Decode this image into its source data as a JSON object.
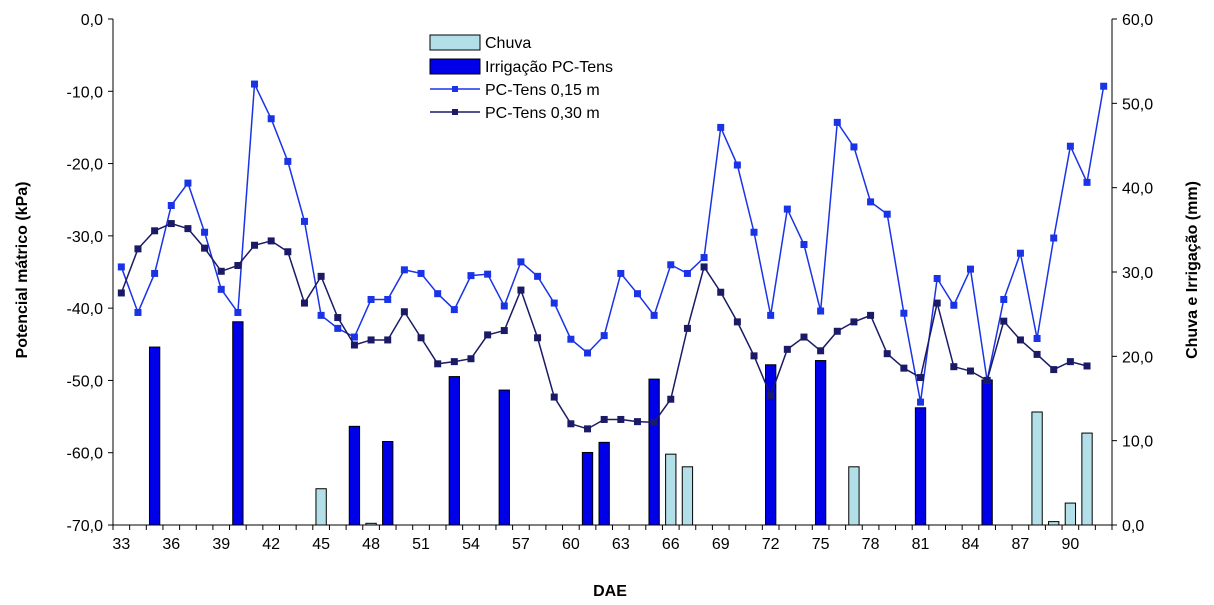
{
  "chart_data": {
    "type": "bar+line",
    "xlabel": "DAE",
    "ylabel_left": "Potencial mátrico (kPa)",
    "ylabel_right": "Chuva e Irrigação (mm)",
    "ylim_left": [
      -70,
      0
    ],
    "ylim_right": [
      0,
      60
    ],
    "xlim": [
      33,
      92
    ],
    "x_ticks": [
      "33",
      "36",
      "39",
      "42",
      "45",
      "48",
      "51",
      "54",
      "57",
      "60",
      "63",
      "66",
      "69",
      "72",
      "75",
      "78",
      "81",
      "84",
      "87",
      "90"
    ],
    "y_ticks_left": [
      "0,0",
      "-10,0",
      "-20,0",
      "-30,0",
      "-40,0",
      "-50,0",
      "-60,0",
      "-70,0"
    ],
    "y_ticks_right": [
      "0,0",
      "10,0",
      "20,0",
      "30,0",
      "40,0",
      "50,0",
      "60,0"
    ],
    "legend": {
      "placement": "top-center",
      "entries": [
        "Chuva",
        "Irrigação PC-Tens",
        "PC-Tens 0,15 m",
        "PC-Tens 0,30 m"
      ]
    },
    "bar_series": [
      {
        "name": "Chuva",
        "color": "#b3e0e8",
        "axis": "right",
        "points": [
          [
            45,
            4.3
          ],
          [
            48,
            0.2
          ],
          [
            66,
            8.4
          ],
          [
            67,
            6.9
          ],
          [
            77,
            6.9
          ],
          [
            88,
            13.4
          ],
          [
            89,
            0.4
          ],
          [
            90,
            2.6
          ],
          [
            91,
            10.9
          ]
        ]
      },
      {
        "name": "Irrigação PC-Tens",
        "color": "#0000e8",
        "axis": "right",
        "points": [
          [
            35,
            21.1
          ],
          [
            40,
            24.1
          ],
          [
            47,
            11.7
          ],
          [
            49,
            9.9
          ],
          [
            53,
            17.6
          ],
          [
            56,
            16.0
          ],
          [
            61,
            8.6
          ],
          [
            62,
            9.8
          ],
          [
            65,
            17.3
          ],
          [
            72,
            19.0
          ],
          [
            75,
            19.5
          ],
          [
            81,
            13.9
          ],
          [
            85,
            17.2
          ]
        ]
      }
    ],
    "line_series": [
      {
        "name": "PC-Tens 0,15 m",
        "color": "#1a33e6",
        "axis": "left",
        "points": [
          [
            33,
            -34.3
          ],
          [
            34,
            -40.6
          ],
          [
            35,
            -35.2
          ],
          [
            36,
            -25.8
          ],
          [
            37,
            -22.7
          ],
          [
            38,
            -29.5
          ],
          [
            39,
            -37.4
          ],
          [
            40,
            -40.6
          ],
          [
            41,
            -9.0
          ],
          [
            42,
            -13.8
          ],
          [
            43,
            -19.7
          ],
          [
            44,
            -28.0
          ],
          [
            45,
            -41.0
          ],
          [
            46,
            -42.8
          ],
          [
            47,
            -44.0
          ],
          [
            48,
            -38.8
          ],
          [
            49,
            -38.8
          ],
          [
            50,
            -34.7
          ],
          [
            51,
            -35.2
          ],
          [
            52,
            -38.0
          ],
          [
            53,
            -40.2
          ],
          [
            54,
            -35.5
          ],
          [
            55,
            -35.3
          ],
          [
            56,
            -39.7
          ],
          [
            57,
            -33.6
          ],
          [
            58,
            -35.6
          ],
          [
            59,
            -39.3
          ],
          [
            60,
            -44.3
          ],
          [
            61,
            -46.2
          ],
          [
            62,
            -43.8
          ],
          [
            63,
            -35.2
          ],
          [
            64,
            -38.0
          ],
          [
            65,
            -41.0
          ],
          [
            66,
            -34.0
          ],
          [
            67,
            -35.2
          ],
          [
            68,
            -33.0
          ],
          [
            69,
            -15.0
          ],
          [
            70,
            -20.2
          ],
          [
            71,
            -29.5
          ],
          [
            72,
            -41.0
          ],
          [
            73,
            -26.3
          ],
          [
            74,
            -31.2
          ],
          [
            75,
            -40.4
          ],
          [
            76,
            -14.3
          ],
          [
            77,
            -17.7
          ],
          [
            78,
            -25.3
          ],
          [
            79,
            -27.0
          ],
          [
            80,
            -40.7
          ],
          [
            81,
            -53.0
          ],
          [
            82,
            -35.9
          ],
          [
            83,
            -39.6
          ],
          [
            84,
            -34.6
          ],
          [
            85,
            -50.0
          ],
          [
            86,
            -38.8
          ],
          [
            87,
            -32.4
          ],
          [
            88,
            -44.2
          ],
          [
            89,
            -30.3
          ],
          [
            90,
            -17.6
          ],
          [
            91,
            -22.6
          ],
          [
            92,
            -9.3
          ]
        ]
      },
      {
        "name": "PC-Tens 0,30 m",
        "color": "#1a1a66",
        "axis": "left",
        "points": [
          [
            33,
            -37.9
          ],
          [
            34,
            -31.8
          ],
          [
            35,
            -29.3
          ],
          [
            36,
            -28.3
          ],
          [
            37,
            -29.0
          ],
          [
            38,
            -31.7
          ],
          [
            39,
            -34.9
          ],
          [
            40,
            -34.1
          ],
          [
            41,
            -31.3
          ],
          [
            42,
            -30.7
          ],
          [
            43,
            -32.2
          ],
          [
            44,
            -39.3
          ],
          [
            45,
            -35.6
          ],
          [
            46,
            -41.3
          ],
          [
            47,
            -45.1
          ],
          [
            48,
            -44.4
          ],
          [
            49,
            -44.4
          ],
          [
            50,
            -40.5
          ],
          [
            51,
            -44.1
          ],
          [
            52,
            -47.7
          ],
          [
            53,
            -47.4
          ],
          [
            54,
            -47.0
          ],
          [
            55,
            -43.7
          ],
          [
            56,
            -43.1
          ],
          [
            57,
            -37.5
          ],
          [
            58,
            -44.1
          ],
          [
            59,
            -52.3
          ],
          [
            60,
            -56.0
          ],
          [
            61,
            -56.7
          ],
          [
            62,
            -55.4
          ],
          [
            63,
            -55.4
          ],
          [
            64,
            -55.7
          ],
          [
            65,
            -55.8
          ],
          [
            66,
            -52.6
          ],
          [
            67,
            -42.8
          ],
          [
            68,
            -34.3
          ],
          [
            69,
            -37.8
          ],
          [
            70,
            -41.9
          ],
          [
            71,
            -46.6
          ],
          [
            72,
            -52.1
          ],
          [
            73,
            -45.7
          ],
          [
            74,
            -44.0
          ],
          [
            75,
            -45.9
          ],
          [
            76,
            -43.2
          ],
          [
            77,
            -41.9
          ],
          [
            78,
            -41.0
          ],
          [
            79,
            -46.3
          ],
          [
            80,
            -48.3
          ],
          [
            81,
            -49.6
          ],
          [
            82,
            -39.3
          ],
          [
            83,
            -48.1
          ],
          [
            84,
            -48.7
          ],
          [
            85,
            -50.0
          ],
          [
            86,
            -41.8
          ],
          [
            87,
            -44.4
          ],
          [
            88,
            -46.4
          ],
          [
            89,
            -48.5
          ],
          [
            90,
            -47.4
          ],
          [
            91,
            -48.0
          ]
        ]
      }
    ]
  }
}
